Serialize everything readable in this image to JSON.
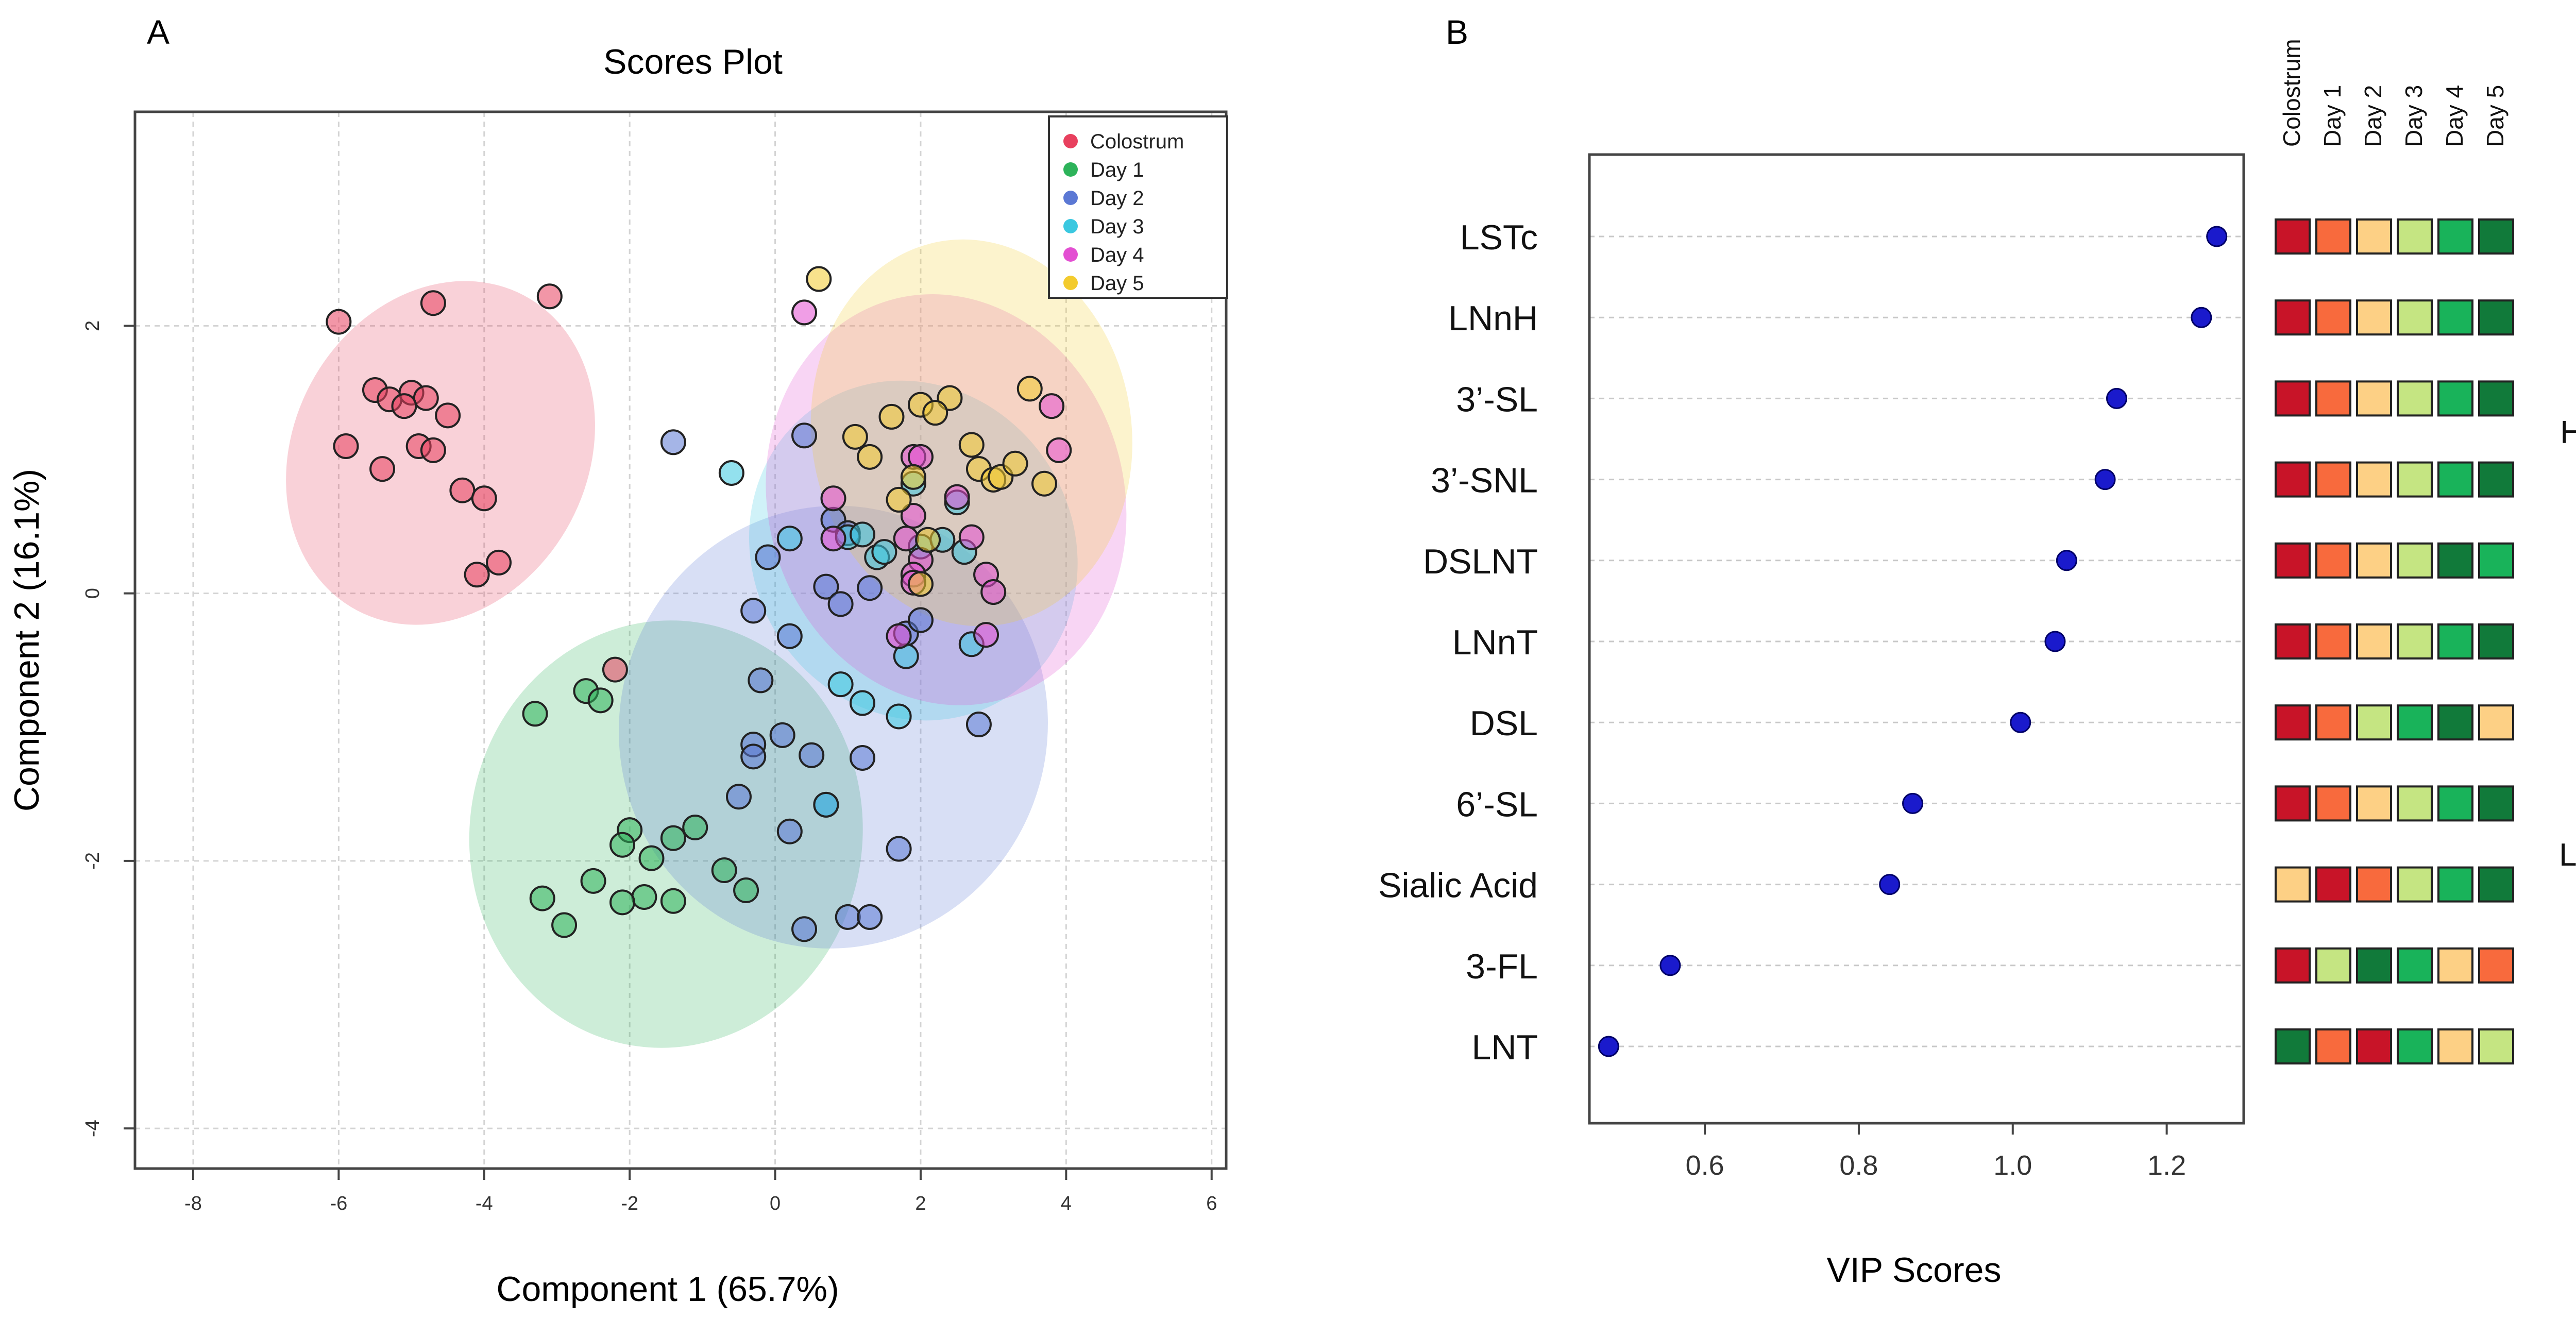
{
  "panels": {
    "a": {
      "letter": "A"
    },
    "b": {
      "letter": "B"
    }
  },
  "chart_data": [
    {
      "type": "scatter",
      "title": "Scores Plot",
      "xlabel": "Component 1 (65.7%)",
      "ylabel": "Component 2 (16.1%)",
      "xlim": [
        -8.8,
        6.2
      ],
      "ylim": [
        -4.3,
        3.6
      ],
      "xticks": [
        -8,
        -6,
        -4,
        -2,
        0,
        2,
        4,
        6
      ],
      "yticks": [
        -4,
        -2,
        0,
        2
      ],
      "grid": true,
      "legend_position": "top-right",
      "series": [
        {
          "name": "Colostrum",
          "color": "#e8405e",
          "ellipse": {
            "cx": -4.6,
            "cy": 1.05,
            "rx": 2.45,
            "ry": 1.1,
            "angle_deg": -62
          },
          "points": [
            [
              -6.0,
              2.03
            ],
            [
              -4.7,
              2.17
            ],
            [
              -3.1,
              2.22
            ],
            [
              -5.5,
              1.52
            ],
            [
              -5.3,
              1.45
            ],
            [
              -5.0,
              1.5
            ],
            [
              -4.8,
              1.46
            ],
            [
              -5.1,
              1.4
            ],
            [
              -4.5,
              1.33
            ],
            [
              -5.9,
              1.1
            ],
            [
              -5.4,
              0.93
            ],
            [
              -4.9,
              1.1
            ],
            [
              -4.7,
              1.07
            ],
            [
              -4.3,
              0.77
            ],
            [
              -4.0,
              0.71
            ],
            [
              -3.8,
              0.23
            ],
            [
              -4.1,
              0.14
            ],
            [
              -2.2,
              -0.57
            ]
          ]
        },
        {
          "name": "Day 1",
          "color": "#2db35a",
          "ellipse": {
            "cx": -1.5,
            "cy": -1.8,
            "rx": 2.7,
            "ry": 1.6,
            "angle_deg": 8
          },
          "points": [
            [
              -3.3,
              -0.9
            ],
            [
              -2.6,
              -0.73
            ],
            [
              -2.4,
              -0.8
            ],
            [
              -2.0,
              -1.77
            ],
            [
              -1.1,
              -1.75
            ],
            [
              -1.4,
              -1.83
            ],
            [
              -1.7,
              -1.98
            ],
            [
              -2.1,
              -1.88
            ],
            [
              -0.7,
              -2.07
            ],
            [
              -2.5,
              -2.15
            ],
            [
              -0.4,
              -2.22
            ],
            [
              -1.8,
              -2.27
            ],
            [
              -2.1,
              -2.31
            ],
            [
              -1.4,
              -2.3
            ],
            [
              -3.2,
              -2.28
            ],
            [
              -2.9,
              -2.48
            ]
          ]
        },
        {
          "name": "Day 2",
          "color": "#5b78d4",
          "ellipse": {
            "cx": 0.8,
            "cy": -1.0,
            "rx": 3.05,
            "ry": 1.6,
            "angle_deg": -75
          },
          "points": [
            [
              -1.4,
              1.13
            ],
            [
              0.4,
              1.18
            ],
            [
              -0.1,
              0.27
            ],
            [
              0.8,
              0.55
            ],
            [
              1.0,
              0.45
            ],
            [
              0.7,
              0.05
            ],
            [
              0.9,
              -0.08
            ],
            [
              1.3,
              0.04
            ],
            [
              -0.3,
              -0.13
            ],
            [
              0.2,
              -0.32
            ],
            [
              1.8,
              -0.3
            ],
            [
              2.0,
              -0.2
            ],
            [
              -0.2,
              -0.65
            ],
            [
              0.1,
              -1.06
            ],
            [
              -0.3,
              -1.13
            ],
            [
              -0.3,
              -1.22
            ],
            [
              0.5,
              -1.21
            ],
            [
              1.2,
              -1.23
            ],
            [
              0.7,
              -1.58
            ],
            [
              -0.5,
              -1.52
            ],
            [
              0.2,
              -1.78
            ],
            [
              1.7,
              -1.91
            ],
            [
              2.8,
              -0.98
            ],
            [
              1.0,
              -2.42
            ],
            [
              1.3,
              -2.42
            ],
            [
              0.4,
              -2.51
            ]
          ]
        },
        {
          "name": "Day 3",
          "color": "#3bc8e0",
          "ellipse": {
            "cx": 1.9,
            "cy": 0.32,
            "rx": 2.2,
            "ry": 1.3,
            "angle_deg": -33
          },
          "points": [
            [
              -0.6,
              0.9
            ],
            [
              0.2,
              0.41
            ],
            [
              1.0,
              0.42
            ],
            [
              1.4,
              0.27
            ],
            [
              1.5,
              0.31
            ],
            [
              2.0,
              0.35
            ],
            [
              2.5,
              0.68
            ],
            [
              2.6,
              0.31
            ],
            [
              2.3,
              0.4
            ],
            [
              1.2,
              0.44
            ],
            [
              1.8,
              -0.47
            ],
            [
              2.7,
              -0.38
            ],
            [
              0.9,
              -0.68
            ],
            [
              1.2,
              -0.82
            ],
            [
              1.7,
              -0.92
            ],
            [
              0.7,
              -1.58
            ],
            [
              1.9,
              0.82
            ]
          ]
        },
        {
          "name": "Day 4",
          "color": "#e34fd2",
          "ellipse": {
            "cx": 2.35,
            "cy": 0.7,
            "rx": 2.45,
            "ry": 1.55,
            "angle_deg": -15
          },
          "points": [
            [
              0.4,
              2.1
            ],
            [
              3.8,
              1.4
            ],
            [
              3.9,
              1.07
            ],
            [
              1.9,
              1.02
            ],
            [
              2.0,
              1.02
            ],
            [
              2.5,
              0.72
            ],
            [
              2.7,
              0.42
            ],
            [
              0.8,
              0.71
            ],
            [
              0.8,
              0.41
            ],
            [
              1.8,
              0.41
            ],
            [
              2.0,
              0.25
            ],
            [
              2.9,
              0.14
            ],
            [
              3.0,
              0.01
            ],
            [
              1.9,
              0.14
            ],
            [
              1.9,
              0.08
            ],
            [
              1.7,
              -0.32
            ],
            [
              2.9,
              -0.31
            ],
            [
              1.9,
              0.58
            ]
          ]
        },
        {
          "name": "Day 5",
          "color": "#f3cb2e",
          "ellipse": {
            "cx": 2.7,
            "cy": 1.2,
            "rx": 2.2,
            "ry": 1.45,
            "angle_deg": -8
          },
          "points": [
            [
              0.6,
              2.35
            ],
            [
              3.5,
              1.53
            ],
            [
              2.0,
              1.41
            ],
            [
              2.4,
              1.46
            ],
            [
              2.2,
              1.35
            ],
            [
              1.6,
              1.32
            ],
            [
              2.7,
              1.11
            ],
            [
              1.1,
              1.17
            ],
            [
              1.3,
              1.02
            ],
            [
              2.8,
              0.93
            ],
            [
              3.0,
              0.85
            ],
            [
              3.1,
              0.87
            ],
            [
              3.3,
              0.97
            ],
            [
              3.7,
              0.82
            ],
            [
              1.7,
              0.7
            ],
            [
              1.9,
              0.87
            ],
            [
              2.1,
              0.4
            ],
            [
              2.0,
              0.07
            ]
          ]
        }
      ]
    },
    {
      "type": "scatter",
      "xlabel": "VIP Scores",
      "xlim": [
        0.45,
        1.3
      ],
      "xticks": [
        0.6,
        0.8,
        1.0,
        1.2
      ],
      "grid": true,
      "point_color": "#1a1acc",
      "categories": [
        "LSTc",
        "LNnH",
        "3’-SL",
        "3’-SNL",
        "DSLNT",
        "LNnT",
        "DSL",
        "6’-SL",
        "Sialic Acid",
        "3-FL",
        "LNT"
      ],
      "values": [
        1.265,
        1.245,
        1.135,
        1.12,
        1.07,
        1.055,
        1.01,
        0.87,
        0.84,
        0.555,
        0.475
      ]
    },
    {
      "type": "heatmap",
      "columns": [
        "Colostrum",
        "Day 1",
        "Day 2",
        "Day 3",
        "Day 4",
        "Day 5"
      ],
      "rows": [
        "LSTc",
        "LNnH",
        "3’-SL",
        "3’-SNL",
        "DSLNT",
        "LNnT",
        "DSL",
        "6’-SL",
        "Sialic Acid",
        "3-FL",
        "LNT"
      ],
      "values": [
        [
          5,
          4,
          3,
          2,
          1,
          0
        ],
        [
          5,
          4,
          3,
          2,
          1,
          0
        ],
        [
          5,
          4,
          3,
          2,
          1,
          0
        ],
        [
          5,
          4,
          3,
          2,
          1,
          0
        ],
        [
          5,
          4,
          3,
          2,
          0,
          1
        ],
        [
          5,
          4,
          3,
          2,
          1,
          0
        ],
        [
          5,
          4,
          2,
          1,
          0,
          3
        ],
        [
          5,
          4,
          3,
          2,
          1,
          0
        ],
        [
          3,
          5,
          4,
          2,
          1,
          0
        ],
        [
          5,
          2,
          0,
          1,
          3,
          4
        ],
        [
          0,
          4,
          5,
          1,
          3,
          2
        ]
      ],
      "palette": [
        "#117a3a",
        "#19b35a",
        "#c5e582",
        "#fdd085",
        "#f86a3d",
        "#c81428"
      ],
      "legend": {
        "high_label": "High",
        "low_label": "Low"
      }
    }
  ]
}
